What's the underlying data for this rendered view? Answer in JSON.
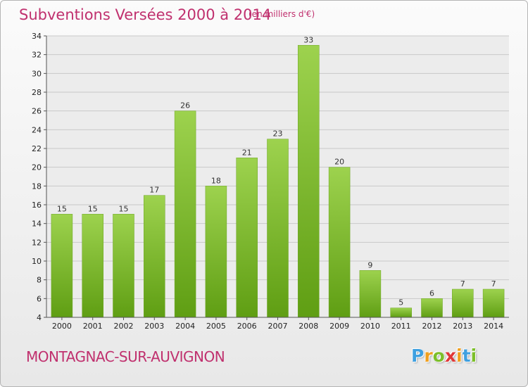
{
  "chart_data": {
    "type": "bar",
    "title": "Subventions Versées 2000 à 2014",
    "subtitle": "(en milliers d'€)",
    "categories": [
      "2000",
      "2001",
      "2002",
      "2003",
      "2004",
      "2005",
      "2006",
      "2007",
      "2008",
      "2009",
      "2010",
      "2011",
      "2012",
      "2013",
      "2014"
    ],
    "values": [
      15,
      15,
      15,
      17,
      26,
      18,
      21,
      23,
      33,
      20,
      9,
      5,
      6,
      7,
      7
    ],
    "ylim": [
      4,
      34
    ],
    "yticks": [
      4,
      6,
      8,
      10,
      12,
      14,
      16,
      18,
      20,
      22,
      24,
      26,
      28,
      30,
      32,
      34
    ],
    "grid": true,
    "xlabel": "",
    "ylabel": "",
    "bar_color_top": "#9dd24e",
    "bar_color_bottom": "#5f9e13"
  },
  "footer": {
    "commune": "MONTAGNAC-SUR-AUVIGNON",
    "brand_letters": [
      "P",
      "r",
      "o",
      "x",
      "i",
      "t",
      "i"
    ],
    "brand_colors": [
      "#3ea0e0",
      "#f0a020",
      "#7cbf2a",
      "#e03838",
      "#f0a020",
      "#3ea0e0",
      "#7cbf2a"
    ]
  }
}
